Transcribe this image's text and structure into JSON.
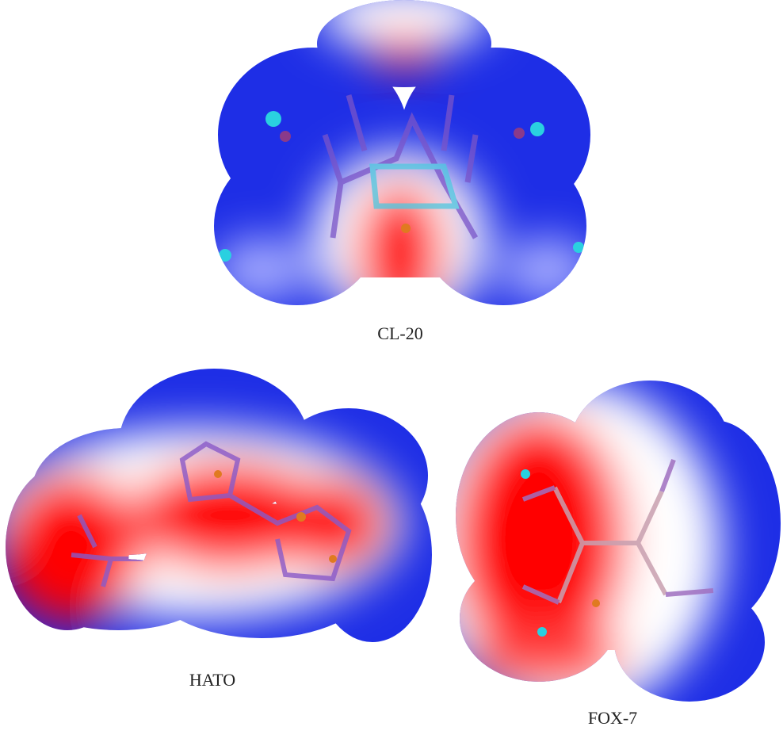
{
  "labels": {
    "cl20": "CL-20",
    "hato": "HATO",
    "fox7": "FOX-7"
  }
}
